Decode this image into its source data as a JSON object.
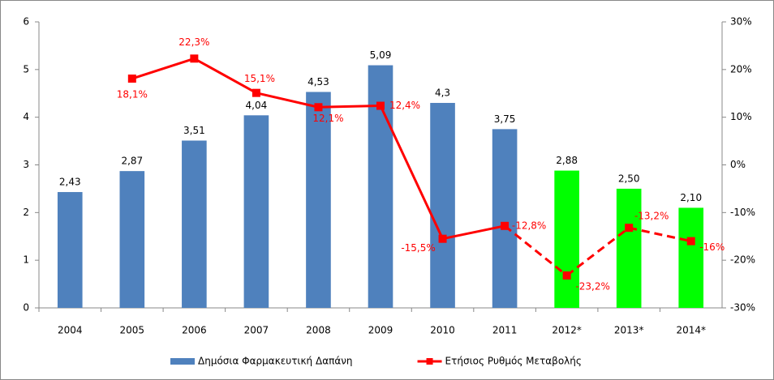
{
  "chart_data": {
    "type": "bar",
    "categories": [
      "2004",
      "2005",
      "2006",
      "2007",
      "2008",
      "2009",
      "2010",
      "2011",
      "2012*",
      "2013*",
      "2014*"
    ],
    "series": [
      {
        "name": "Δημόσια Φαρμακευτική Δαπάνη",
        "type": "bar",
        "color": "#4f81bd",
        "colors": [
          "#4f81bd",
          "#4f81bd",
          "#4f81bd",
          "#4f81bd",
          "#4f81bd",
          "#4f81bd",
          "#4f81bd",
          "#4f81bd",
          "#00ff00",
          "#00ff00",
          "#00ff00"
        ],
        "values": [
          2.43,
          2.87,
          3.51,
          4.04,
          4.53,
          5.09,
          4.3,
          3.75,
          2.88,
          2.5,
          2.1
        ],
        "value_labels": [
          "2,43",
          "2,87",
          "3,51",
          "4,04",
          "4,53",
          "5,09",
          "4,3",
          "3,75",
          "2,88",
          "2,50",
          "2,10"
        ]
      },
      {
        "name": "Ετήσιος Ρυθμός Μεταβολής",
        "type": "line",
        "axis": "y2",
        "color": "#ff0000",
        "values": [
          null,
          18.1,
          22.3,
          15.1,
          12.1,
          12.4,
          -15.5,
          -12.8,
          -23.2,
          -13.2,
          -16
        ],
        "value_labels": [
          null,
          "18,1%",
          "22,3%",
          "15,1%",
          "12,1%",
          "12,4%",
          "-15,5%",
          "-12,8%",
          "-23,2%",
          "-13,2%",
          "-16%"
        ],
        "dashed": [
          false,
          false,
          false,
          false,
          false,
          false,
          false,
          false,
          true,
          true,
          true
        ]
      }
    ],
    "ylim": [
      0,
      6
    ],
    "yticks": [
      0,
      1,
      2,
      3,
      4,
      5,
      6
    ],
    "y2lim": [
      -30,
      30
    ],
    "y2ticks": [
      {
        "value": -30,
        "label": "-30%"
      },
      {
        "value": -20,
        "label": "-20%"
      },
      {
        "value": -10,
        "label": "-10%"
      },
      {
        "value": 0,
        "label": "0%"
      },
      {
        "value": 10,
        "label": "10%"
      },
      {
        "value": 20,
        "label": "20%"
      },
      {
        "value": 30,
        "label": "30%"
      }
    ],
    "legend": "bottom"
  }
}
